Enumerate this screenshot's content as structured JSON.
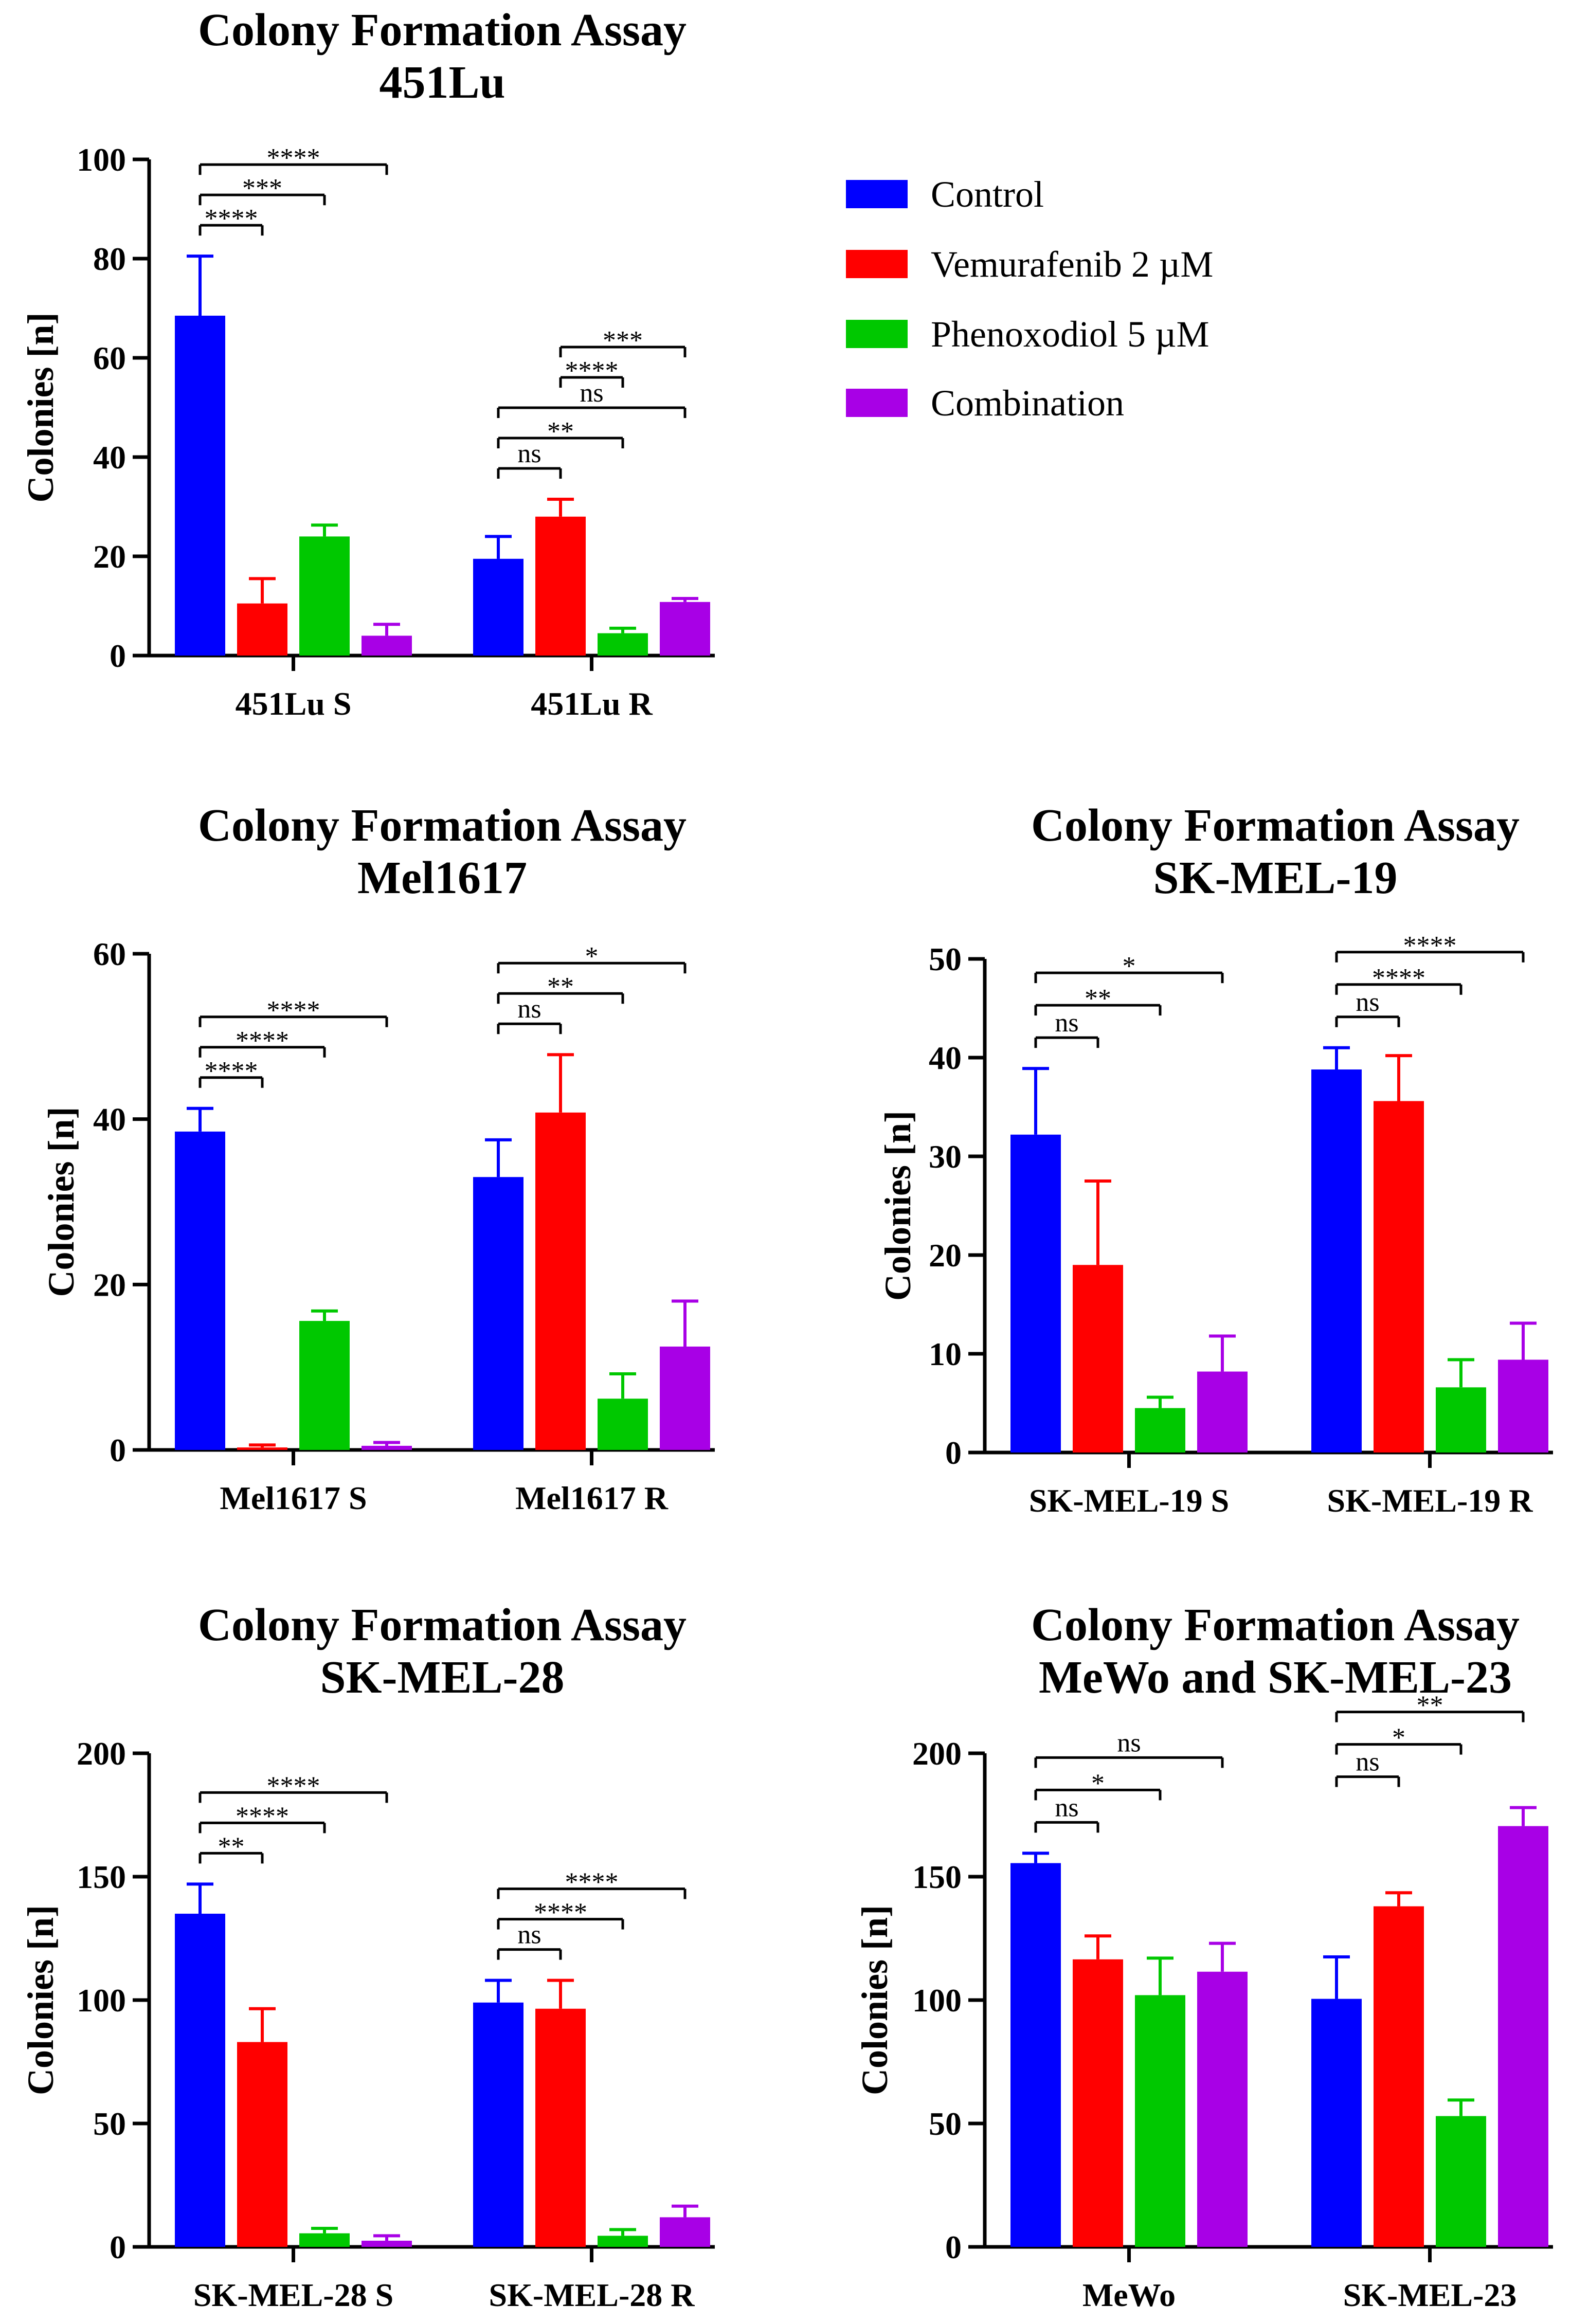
{
  "chart_data": [
    {
      "type": "bar",
      "title": "Colony Formation Assay",
      "subtitle": "451Lu",
      "xlabel": "",
      "ylabel": "Colonies [n]",
      "ylim": [
        0,
        100
      ],
      "yticks": [
        0,
        20,
        40,
        60,
        80,
        100
      ],
      "categories": [
        "451Lu S",
        "451Lu R"
      ],
      "series": [
        {
          "name": "Control",
          "values": [
            68.5,
            19.5
          ],
          "errors": [
            12,
            4.5
          ]
        },
        {
          "name": "Vemurafenib 2 µM",
          "values": [
            10.5,
            28
          ],
          "errors": [
            5,
            3.5
          ]
        },
        {
          "name": "Phenoxodiol 5 µM",
          "values": [
            24,
            4.5
          ],
          "errors": [
            2.3,
            1
          ]
        },
        {
          "name": "Combination",
          "values": [
            4,
            10.8
          ],
          "errors": [
            2.3,
            0.7
          ]
        }
      ],
      "significance": [
        {
          "group": 0,
          "to_series": 1,
          "label": "****"
        },
        {
          "group": 0,
          "to_series": 2,
          "label": "***"
        },
        {
          "group": 0,
          "to_series": 3,
          "label": "****"
        },
        {
          "group": 1,
          "from_series": 0,
          "to_series": 1,
          "label": "ns"
        },
        {
          "group": 1,
          "from_series": 0,
          "to_series": 2,
          "label": "**"
        },
        {
          "group": 1,
          "from_series": 0,
          "to_series": 3,
          "label": "ns"
        },
        {
          "group": 1,
          "from_series": 1,
          "to_series": 2,
          "label": "****"
        },
        {
          "group": 1,
          "from_series": 1,
          "to_series": 3,
          "label": "***"
        }
      ]
    },
    {
      "type": "bar",
      "title": "Colony Formation Assay",
      "subtitle": "Mel1617",
      "xlabel": "",
      "ylabel": "Colonies [n]",
      "ylim": [
        0,
        60
      ],
      "yticks": [
        0,
        20,
        40,
        60
      ],
      "categories": [
        "Mel1617 S",
        "Mel1617 R"
      ],
      "series": [
        {
          "name": "Control",
          "values": [
            38.5,
            33
          ],
          "errors": [
            2.8,
            4.5
          ]
        },
        {
          "name": "Vemurafenib 2 µM",
          "values": [
            0.3,
            40.8
          ],
          "errors": [
            0.3,
            7
          ]
        },
        {
          "name": "Phenoxodiol 5 µM",
          "values": [
            15.6,
            6.2
          ],
          "errors": [
            1.2,
            3
          ]
        },
        {
          "name": "Combination",
          "values": [
            0.5,
            12.5
          ],
          "errors": [
            0.4,
            5.5
          ]
        }
      ],
      "significance": [
        {
          "group": 0,
          "to_series": 1,
          "label": "****"
        },
        {
          "group": 0,
          "to_series": 2,
          "label": "****"
        },
        {
          "group": 0,
          "to_series": 3,
          "label": "****"
        },
        {
          "group": 1,
          "to_series": 1,
          "label": "ns"
        },
        {
          "group": 1,
          "to_series": 2,
          "label": "**"
        },
        {
          "group": 1,
          "to_series": 3,
          "label": "*"
        }
      ]
    },
    {
      "type": "bar",
      "title": "Colony Formation Assay",
      "subtitle": "SK-MEL-19",
      "xlabel": "",
      "ylabel": "Colonies [n]",
      "ylim": [
        0,
        50
      ],
      "yticks": [
        0,
        10,
        20,
        30,
        40,
        50
      ],
      "categories": [
        "SK-MEL-19 S",
        "SK-MEL-19 R"
      ],
      "series": [
        {
          "name": "Control",
          "values": [
            32.2,
            38.8
          ],
          "errors": [
            6.7,
            2.2
          ]
        },
        {
          "name": "Vemurafenib 2 µM",
          "values": [
            19,
            35.6
          ],
          "errors": [
            8.5,
            4.6
          ]
        },
        {
          "name": "Phenoxodiol 5 µM",
          "values": [
            4.5,
            6.6
          ],
          "errors": [
            1.1,
            2.8
          ]
        },
        {
          "name": "Combination",
          "values": [
            8.2,
            9.4
          ],
          "errors": [
            3.6,
            3.7
          ]
        }
      ],
      "significance": [
        {
          "group": 0,
          "to_series": 1,
          "label": "ns"
        },
        {
          "group": 0,
          "to_series": 2,
          "label": "**"
        },
        {
          "group": 0,
          "to_series": 3,
          "label": "*"
        },
        {
          "group": 1,
          "to_series": 1,
          "label": "ns"
        },
        {
          "group": 1,
          "to_series": 2,
          "label": "****"
        },
        {
          "group": 1,
          "to_series": 3,
          "label": "****"
        }
      ]
    },
    {
      "type": "bar",
      "title": "Colony Formation Assay",
      "subtitle": "SK-MEL-28",
      "xlabel": "",
      "ylabel": "Colonies [n]",
      "ylim": [
        0,
        200
      ],
      "yticks": [
        0,
        50,
        100,
        150,
        200
      ],
      "categories": [
        "SK-MEL-28 S",
        "SK-MEL-28 R"
      ],
      "series": [
        {
          "name": "Control",
          "values": [
            135,
            99
          ],
          "errors": [
            12,
            9
          ]
        },
        {
          "name": "Vemurafenib 2 µM",
          "values": [
            83,
            96.5
          ],
          "errors": [
            13.5,
            11.5
          ]
        },
        {
          "name": "Phenoxodiol 5 µM",
          "values": [
            5.5,
            4.5
          ],
          "errors": [
            2,
            2.5
          ]
        },
        {
          "name": "Combination",
          "values": [
            2.5,
            12
          ],
          "errors": [
            2,
            4.5
          ]
        }
      ],
      "significance": [
        {
          "group": 0,
          "to_series": 1,
          "label": "**"
        },
        {
          "group": 0,
          "to_series": 2,
          "label": "****"
        },
        {
          "group": 0,
          "to_series": 3,
          "label": "****"
        },
        {
          "group": 1,
          "to_series": 1,
          "label": "ns"
        },
        {
          "group": 1,
          "to_series": 2,
          "label": "****"
        },
        {
          "group": 1,
          "to_series": 3,
          "label": "****"
        }
      ]
    },
    {
      "type": "bar",
      "title": "Colony Formation Assay",
      "subtitle": "MeWo and SK-MEL-23",
      "xlabel": "",
      "ylabel": "Colonies [n]",
      "ylim": [
        0,
        200
      ],
      "yticks": [
        0,
        50,
        100,
        150,
        200
      ],
      "categories": [
        "MeWo",
        "SK-MEL-23"
      ],
      "series": [
        {
          "name": "Control",
          "values": [
            155.5,
            100.5
          ],
          "errors": [
            4,
            17
          ]
        },
        {
          "name": "Vemurafenib 2 µM",
          "values": [
            116.5,
            138
          ],
          "errors": [
            9.5,
            5.5
          ]
        },
        {
          "name": "Phenoxodiol 5 µM",
          "values": [
            102,
            53
          ],
          "errors": [
            15,
            6.5
          ]
        },
        {
          "name": "Combination",
          "values": [
            111.5,
            170.5
          ],
          "errors": [
            11.5,
            7.5
          ]
        }
      ],
      "significance": [
        {
          "group": 0,
          "to_series": 1,
          "label": "ns"
        },
        {
          "group": 0,
          "to_series": 2,
          "label": "*"
        },
        {
          "group": 0,
          "to_series": 3,
          "label": "ns"
        },
        {
          "group": 1,
          "to_series": 1,
          "label": "ns"
        },
        {
          "group": 1,
          "to_series": 2,
          "label": "*"
        },
        {
          "group": 1,
          "to_series": 3,
          "label": "**"
        }
      ]
    }
  ],
  "legend": {
    "placement": "top-right",
    "items": [
      {
        "label": "Control",
        "color": "#0000ff"
      },
      {
        "label": "Vemurafenib 2 µM",
        "color": "#ff0000"
      },
      {
        "label": "Phenoxodiol 5 µM",
        "color": "#00c800"
      },
      {
        "label": "Combination",
        "color": "#a800e6"
      }
    ]
  },
  "colors": {
    "series": [
      "#0000ff",
      "#ff0000",
      "#00c800",
      "#a800e6"
    ],
    "axis": "#000000"
  }
}
